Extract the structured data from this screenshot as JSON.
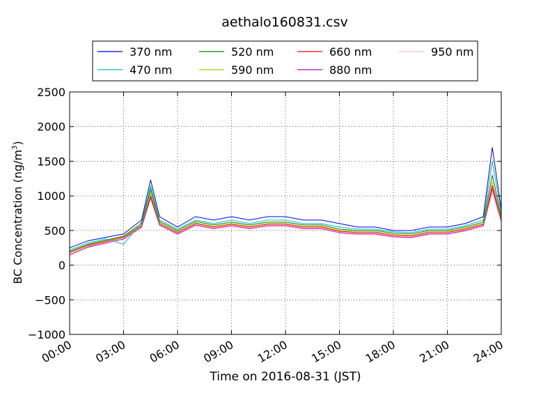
{
  "chart_data": {
    "type": "line",
    "title": "aethalo160831.csv",
    "xlabel": "Time on 2016-08-31 (JST)",
    "ylabel_main": "BC Concentration (ng/m",
    "ylabel_sup": "3",
    "ylabel_end": ")",
    "ylim": [
      -1000,
      2500
    ],
    "xlim_hours": [
      0,
      24
    ],
    "grid": true,
    "legend_position": "top-center",
    "x_ticks": [
      "00:00",
      "03:00",
      "06:00",
      "09:00",
      "12:00",
      "15:00",
      "18:00",
      "21:00",
      "24:00"
    ],
    "y_ticks": [
      "2500",
      "2000",
      "1500",
      "1000",
      "500",
      "0",
      "−500",
      "−1000"
    ],
    "series": [
      {
        "name": "370 nm",
        "color": "#0000ff",
        "x": [
          0,
          1,
          2,
          3,
          4,
          4.5,
          5,
          6,
          7,
          8,
          9,
          10,
          11,
          12,
          13,
          14,
          15,
          16,
          17,
          18,
          19,
          20,
          21,
          22,
          23,
          23.5,
          24
        ],
        "y": [
          250,
          350,
          400,
          450,
          650,
          1230,
          700,
          550,
          700,
          650,
          700,
          650,
          700,
          700,
          650,
          650,
          600,
          550,
          550,
          500,
          500,
          550,
          550,
          600,
          700,
          1700,
          800
        ]
      },
      {
        "name": "470 nm",
        "color": "#00c0c0",
        "x": [
          0,
          1,
          2,
          3,
          4,
          4.5,
          5,
          6,
          7,
          8,
          9,
          10,
          11,
          12,
          13,
          14,
          15,
          16,
          17,
          18,
          19,
          20,
          21,
          22,
          23,
          23.5,
          24
        ],
        "y": [
          220,
          320,
          380,
          300,
          620,
          1150,
          650,
          520,
          650,
          600,
          650,
          600,
          650,
          650,
          600,
          600,
          550,
          520,
          520,
          480,
          470,
          520,
          520,
          570,
          650,
          1500,
          750
        ]
      },
      {
        "name": "520 nm",
        "color": "#008000",
        "x": [
          0,
          1,
          2,
          3,
          4,
          4.5,
          5,
          6,
          7,
          8,
          9,
          10,
          11,
          12,
          13,
          14,
          15,
          16,
          17,
          18,
          19,
          20,
          21,
          22,
          23,
          23.5,
          24
        ],
        "y": [
          200,
          300,
          360,
          420,
          600,
          1100,
          630,
          500,
          630,
          580,
          620,
          580,
          620,
          620,
          580,
          580,
          520,
          500,
          500,
          460,
          450,
          500,
          500,
          550,
          620,
          1300,
          700
        ]
      },
      {
        "name": "590 nm",
        "color": "#bfbf00",
        "x": [
          0,
          1,
          2,
          3,
          4,
          4.5,
          5,
          6,
          7,
          8,
          9,
          10,
          11,
          12,
          13,
          14,
          15,
          16,
          17,
          18,
          19,
          20,
          21,
          22,
          23,
          23.5,
          24
        ],
        "y": [
          190,
          290,
          350,
          410,
          580,
          1050,
          610,
          480,
          610,
          560,
          600,
          560,
          600,
          600,
          560,
          560,
          500,
          480,
          480,
          440,
          430,
          480,
          480,
          530,
          600,
          1200,
          680
        ]
      },
      {
        "name": "660 nm",
        "color": "#ff0000",
        "x": [
          0,
          1,
          2,
          3,
          4,
          4.5,
          5,
          6,
          7,
          8,
          9,
          10,
          11,
          12,
          13,
          14,
          15,
          16,
          17,
          18,
          19,
          20,
          21,
          22,
          23,
          23.5,
          24
        ],
        "y": [
          180,
          280,
          340,
          400,
          570,
          1000,
          600,
          470,
          600,
          550,
          590,
          550,
          590,
          590,
          550,
          550,
          490,
          470,
          470,
          430,
          420,
          470,
          470,
          520,
          590,
          1150,
          660
        ]
      },
      {
        "name": "880 nm",
        "color": "#bf00bf",
        "x": [
          0,
          1,
          2,
          3,
          4,
          4.5,
          5,
          6,
          7,
          8,
          9,
          10,
          11,
          12,
          13,
          14,
          15,
          16,
          17,
          18,
          19,
          20,
          21,
          22,
          23,
          23.5,
          24
        ],
        "y": [
          150,
          260,
          320,
          380,
          550,
          980,
          580,
          450,
          580,
          530,
          570,
          530,
          570,
          570,
          530,
          530,
          470,
          450,
          450,
          410,
          400,
          450,
          450,
          500,
          570,
          1100,
          640
        ]
      },
      {
        "name": "950 nm",
        "color": "#ffc0cb",
        "x": [
          0,
          1,
          2,
          3,
          4,
          4.5,
          5,
          6,
          7,
          8,
          9,
          10,
          11,
          12,
          13,
          14,
          15,
          16,
          17,
          18,
          19,
          20,
          21,
          22,
          23,
          23.5,
          24
        ],
        "y": [
          140,
          250,
          310,
          370,
          540,
          960,
          570,
          440,
          570,
          520,
          560,
          520,
          560,
          560,
          520,
          520,
          460,
          440,
          440,
          400,
          390,
          440,
          440,
          490,
          560,
          1050,
          620
        ]
      }
    ]
  }
}
